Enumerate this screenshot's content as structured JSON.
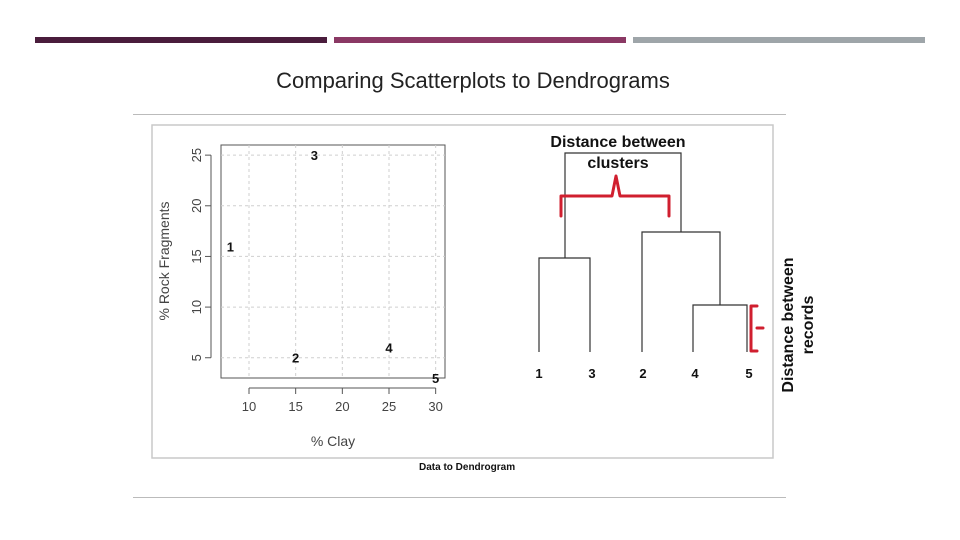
{
  "slide": {
    "title": "Comparing Scatterplots to Dendrograms",
    "caption": "Data to Dendrogram",
    "bar_colors": [
      "#4a1d3c",
      "#8a3864",
      "#9ea5a9"
    ]
  },
  "chart_data": [
    {
      "type": "scatter",
      "xlabel": "% Clay",
      "ylabel": "% Rock Fragments",
      "xlim": [
        7,
        31
      ],
      "ylim": [
        3,
        26
      ],
      "xticks": [
        10,
        15,
        20,
        25,
        30
      ],
      "yticks": [
        5,
        10,
        15,
        20,
        25
      ],
      "grid": true,
      "points": [
        {
          "label": "1",
          "x": 8,
          "y": 16
        },
        {
          "label": "2",
          "x": 15,
          "y": 5
        },
        {
          "label": "3",
          "x": 17,
          "y": 25
        },
        {
          "label": "4",
          "x": 25,
          "y": 6
        },
        {
          "label": "5",
          "x": 30,
          "y": 3
        }
      ]
    },
    {
      "type": "dendrogram",
      "leaves": [
        "1",
        "3",
        "2",
        "4",
        "5"
      ],
      "annotations": {
        "clusters": "Distance between clusters",
        "records": "Distance between records"
      }
    }
  ]
}
